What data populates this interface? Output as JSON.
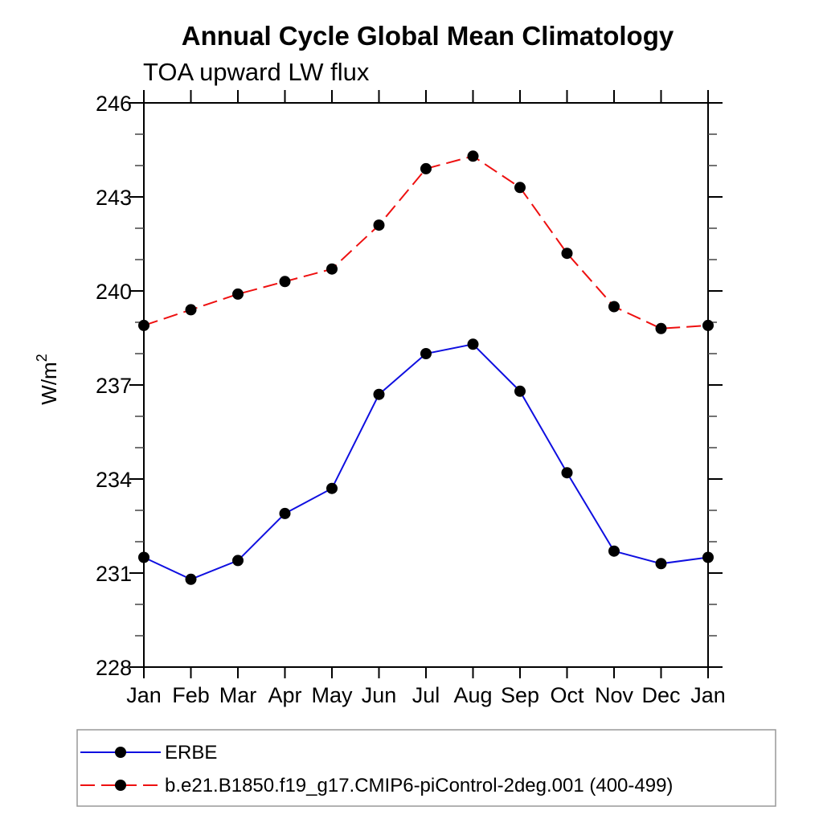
{
  "title": "Annual Cycle Global Mean Climatology",
  "subtitle": "TOA upward LW flux",
  "chart_data": {
    "type": "line",
    "categories": [
      "Jan",
      "Feb",
      "Mar",
      "Apr",
      "May",
      "Jun",
      "Jul",
      "Aug",
      "Sep",
      "Oct",
      "Nov",
      "Dec",
      "Jan"
    ],
    "ylabel_base": "W/m",
    "ylabel_exponent": "2",
    "ylim": [
      228,
      246
    ],
    "ytick_major": [
      228,
      231,
      234,
      237,
      240,
      243,
      246
    ],
    "ytick_minor_step": 1,
    "grid": false,
    "legend_position": "bottom-left",
    "marker": "filled-circle",
    "marker_color": "#000000",
    "series": [
      {
        "name": "ERBE",
        "color": "#0f0fe0",
        "line_style": "solid",
        "values": [
          231.5,
          230.8,
          231.4,
          232.9,
          233.7,
          236.7,
          238.0,
          238.3,
          236.8,
          234.2,
          231.7,
          231.3,
          231.5
        ]
      },
      {
        "name": "b.e21.B1850.f19_g17.CMIP6-piControl-2deg.001 (400-499)",
        "color": "#ee1010",
        "line_style": "dashed",
        "values": [
          238.9,
          239.4,
          239.9,
          240.3,
          240.7,
          242.1,
          243.9,
          244.3,
          243.3,
          241.2,
          239.5,
          238.8,
          238.9
        ]
      }
    ]
  }
}
